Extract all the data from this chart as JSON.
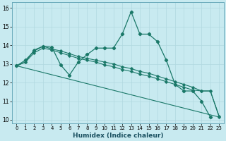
{
  "xlabel": "Humidex (Indice chaleur)",
  "background_color": "#c8eaf0",
  "grid_color": "#b0d8e0",
  "line_color": "#1a7868",
  "xlim": [
    -0.5,
    23.5
  ],
  "ylim": [
    9.8,
    16.3
  ],
  "xticks": [
    0,
    1,
    2,
    3,
    4,
    5,
    6,
    7,
    8,
    9,
    10,
    11,
    12,
    13,
    14,
    15,
    16,
    17,
    18,
    19,
    20,
    21,
    22,
    23
  ],
  "yticks": [
    10,
    11,
    12,
    13,
    14,
    15,
    16
  ],
  "series1_x": [
    0,
    1,
    2,
    3,
    4,
    5,
    6,
    7,
    8,
    9,
    10,
    11,
    12,
    13,
    14,
    15,
    16,
    17,
    18,
    19,
    20,
    21,
    22
  ],
  "series1_y": [
    12.9,
    13.2,
    13.7,
    13.95,
    13.9,
    12.95,
    12.4,
    13.1,
    13.5,
    13.85,
    13.85,
    13.85,
    14.6,
    15.8,
    14.6,
    14.6,
    14.2,
    13.2,
    11.9,
    11.55,
    11.55,
    11.0,
    10.15
  ],
  "series2_x": [
    0,
    1,
    2,
    3,
    4,
    5,
    6,
    7,
    8,
    9,
    10,
    11,
    12,
    13,
    14,
    15,
    16,
    17,
    18,
    19,
    20,
    21,
    22,
    23
  ],
  "series2_y": [
    12.9,
    13.1,
    13.75,
    13.95,
    13.8,
    13.7,
    13.55,
    13.4,
    13.3,
    13.2,
    13.1,
    13.0,
    12.85,
    12.75,
    12.6,
    12.5,
    12.35,
    12.2,
    12.05,
    11.9,
    11.75,
    11.55,
    11.55,
    10.2
  ],
  "series3_x": [
    0,
    1,
    2,
    3,
    4,
    5,
    6,
    7,
    8,
    9,
    10,
    11,
    12,
    13,
    14,
    15,
    16,
    17,
    18,
    19,
    20,
    21,
    22,
    23
  ],
  "series3_y": [
    12.9,
    13.1,
    13.6,
    13.85,
    13.75,
    13.6,
    13.45,
    13.3,
    13.2,
    13.1,
    12.95,
    12.85,
    12.7,
    12.6,
    12.45,
    12.35,
    12.2,
    12.05,
    11.9,
    11.75,
    11.6,
    11.55,
    11.55,
    10.15
  ],
  "series4_x": [
    0,
    23
  ],
  "series4_y": [
    12.9,
    10.15
  ]
}
